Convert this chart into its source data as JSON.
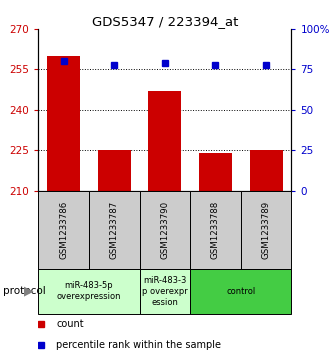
{
  "title": "GDS5347 / 223394_at",
  "samples": [
    "GSM1233786",
    "GSM1233787",
    "GSM1233790",
    "GSM1233788",
    "GSM1233789"
  ],
  "counts": [
    260,
    225,
    247,
    224,
    225
  ],
  "percentile_ranks": [
    80,
    78,
    79,
    78,
    78
  ],
  "ylim_left": [
    210,
    270
  ],
  "ylim_right": [
    0,
    100
  ],
  "yticks_left": [
    210,
    225,
    240,
    255,
    270
  ],
  "yticks_right": [
    0,
    25,
    50,
    75,
    100
  ],
  "bar_color": "#cc0000",
  "dot_color": "#0000cc",
  "protocol_groups": [
    {
      "label": "miR-483-5p\noverexpression",
      "span": [
        0,
        1
      ],
      "color": "#ccffcc"
    },
    {
      "label": "miR-483-3\np overexpr\nession",
      "span": [
        2,
        2
      ],
      "color": "#ccffcc"
    },
    {
      "label": "control",
      "span": [
        3,
        4
      ],
      "color": "#44cc44"
    }
  ],
  "protocol_label": "protocol",
  "legend_count_label": "count",
  "legend_percentile_label": "percentile rank within the sample",
  "sample_box_color": "#cccccc",
  "left_axis_color": "#cc0000",
  "right_axis_color": "#0000cc",
  "fig_width": 3.33,
  "fig_height": 3.63,
  "dpi": 100
}
